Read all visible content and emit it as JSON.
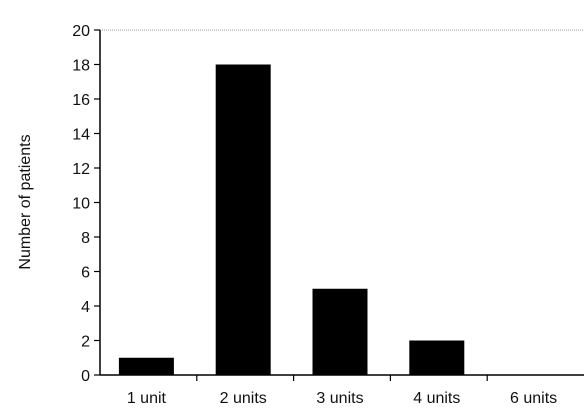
{
  "chart_data": {
    "type": "bar",
    "title": "",
    "xlabel": "",
    "ylabel": "Number of patients",
    "categories": [
      "1 unit",
      "2 units",
      "3 units",
      "4 units",
      "6 units"
    ],
    "values": [
      1,
      18,
      5,
      2,
      0
    ],
    "ylim": [
      0,
      20
    ],
    "yticks": [
      "0",
      "2",
      "4",
      "6",
      "8",
      "10",
      "12",
      "14",
      "16",
      "18",
      "20"
    ],
    "grid": false,
    "legend": "none",
    "bar_color": "#000000",
    "axis_color": "#000000",
    "top_reference_line_color": "#9a9a9a"
  }
}
